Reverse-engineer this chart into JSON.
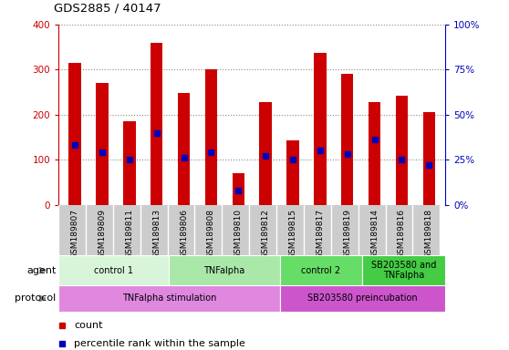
{
  "title": "GDS2885 / 40147",
  "samples": [
    "GSM189807",
    "GSM189809",
    "GSM189811",
    "GSM189813",
    "GSM189806",
    "GSM189808",
    "GSM189810",
    "GSM189812",
    "GSM189815",
    "GSM189817",
    "GSM189819",
    "GSM189814",
    "GSM189816",
    "GSM189818"
  ],
  "counts": [
    315,
    270,
    185,
    360,
    248,
    300,
    70,
    228,
    143,
    338,
    290,
    228,
    242,
    205
  ],
  "percentile_ranks": [
    33,
    29,
    25,
    40,
    26,
    29,
    8,
    27,
    25,
    30,
    28,
    36,
    25,
    22
  ],
  "left_ylim": [
    0,
    400
  ],
  "right_ylim": [
    0,
    100
  ],
  "left_yticks": [
    0,
    100,
    200,
    300,
    400
  ],
  "right_yticks": [
    0,
    25,
    50,
    75,
    100
  ],
  "right_yticklabels": [
    "0%",
    "25%",
    "50%",
    "75%",
    "100%"
  ],
  "bar_color": "#cc0000",
  "percentile_color": "#0000bb",
  "agent_groups": [
    {
      "label": "control 1",
      "start": 0,
      "end": 4,
      "color": "#d9f5d9"
    },
    {
      "label": "TNFalpha",
      "start": 4,
      "end": 8,
      "color": "#aae8aa"
    },
    {
      "label": "control 2",
      "start": 8,
      "end": 11,
      "color": "#66dd66"
    },
    {
      "label": "SB203580 and\nTNFalpha",
      "start": 11,
      "end": 14,
      "color": "#44cc44"
    }
  ],
  "protocol_groups": [
    {
      "label": "TNFalpha stimulation",
      "start": 0,
      "end": 8,
      "color": "#e088e0"
    },
    {
      "label": "SB203580 preincubation",
      "start": 8,
      "end": 14,
      "color": "#cc55cc"
    }
  ],
  "label_color": "#555555",
  "left_axis_color": "#cc0000",
  "right_axis_color": "#0000bb",
  "grid_color": "#888888",
  "tick_area_color": "#cccccc",
  "bar_width": 0.45
}
